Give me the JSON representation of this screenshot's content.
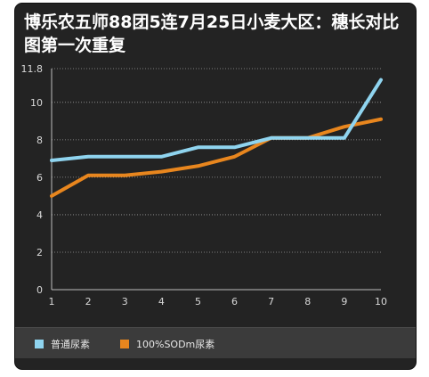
{
  "title": "博乐农五师88团5连7月25日小麦大区：穗长对比图第一次重复",
  "chart_data": {
    "type": "line",
    "title": "博乐农五师88团5连7月25日小麦大区：穗长对比图第一次重复",
    "x": [
      1,
      2,
      3,
      4,
      5,
      6,
      7,
      8,
      9,
      10
    ],
    "xlabel": "",
    "ylabel": "",
    "ylim": [
      0,
      11.8
    ],
    "yticks": [
      0,
      2,
      4,
      6,
      8,
      10,
      11.8
    ],
    "grid": true,
    "legend_position": "bottom-left",
    "series": [
      {
        "name": "普通尿素",
        "color": "#8fd4ef",
        "values": [
          6.9,
          7.1,
          7.1,
          7.1,
          7.6,
          7.6,
          8.1,
          8.1,
          8.1,
          11.2
        ]
      },
      {
        "name": "100%SODm尿素",
        "color": "#e8861e",
        "values": [
          5.0,
          6.1,
          6.1,
          6.3,
          6.6,
          7.1,
          8.1,
          8.1,
          8.7,
          9.1
        ]
      }
    ]
  }
}
